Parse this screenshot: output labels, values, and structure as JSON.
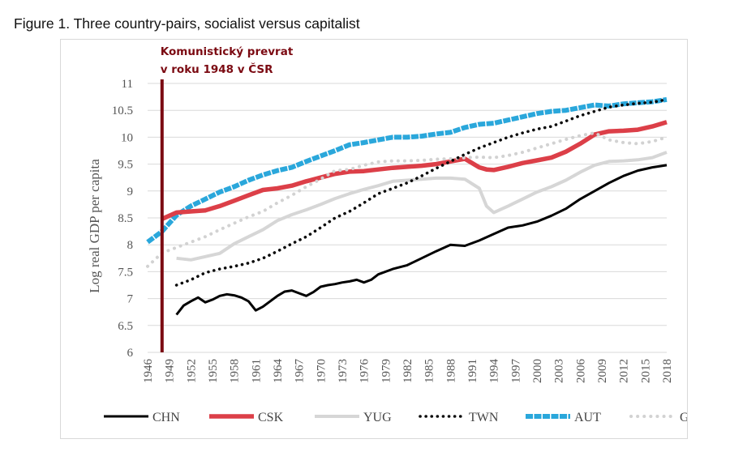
{
  "figure_title": "Figure 1. Three country-pairs, socialist versus capitalist",
  "colors": {
    "CHN": "#000000",
    "CSK": "#dc3f48",
    "YUG": "#d6d6d6",
    "TWN": "#0a0a0a",
    "AUT": "#2aa7db",
    "GRC": "#d2d2d2",
    "annotation": "#7b0a12"
  },
  "chart_data": {
    "type": "line",
    "ylabel": "Log real GDP per capita",
    "xlabel": "",
    "ylim": [
      6,
      11
    ],
    "xlim": [
      1946,
      2018
    ],
    "y_ticks": [
      "11",
      "10.5",
      "10",
      "9.5",
      "9",
      "8.5",
      "8",
      "7.5",
      "7",
      "6.5",
      "6"
    ],
    "x_ticks": [
      "1946",
      "1949",
      "1952",
      "1955",
      "1958",
      "1961",
      "1964",
      "1967",
      "1970",
      "1973",
      "1976",
      "1979",
      "1982",
      "1985",
      "1988",
      "1991",
      "1994",
      "1997",
      "2000",
      "2003",
      "2006",
      "2009",
      "2012",
      "2015",
      "2018"
    ],
    "grid": "horizontal",
    "legend_position": "bottom",
    "annotation": {
      "lines": [
        "Komunistický prevrat",
        "v roku 1948 v ČSR"
      ],
      "x": 1948
    },
    "series": [
      {
        "name": "AUT",
        "style": "dashed-thick",
        "x": [
          1946,
          1948,
          1950,
          1952,
          1954,
          1956,
          1958,
          1960,
          1962,
          1964,
          1966,
          1968,
          1970,
          1972,
          1974,
          1976,
          1978,
          1980,
          1982,
          1984,
          1986,
          1988,
          1990,
          1992,
          1994,
          1996,
          1998,
          2000,
          2002,
          2004,
          2006,
          2008,
          2010,
          2012,
          2014,
          2016,
          2018
        ],
        "y": [
          8.05,
          8.25,
          8.55,
          8.72,
          8.85,
          8.98,
          9.08,
          9.2,
          9.3,
          9.38,
          9.44,
          9.55,
          9.65,
          9.75,
          9.86,
          9.9,
          9.95,
          10.0,
          10.0,
          10.02,
          10.06,
          10.09,
          10.18,
          10.24,
          10.26,
          10.32,
          10.38,
          10.44,
          10.48,
          10.5,
          10.55,
          10.6,
          10.58,
          10.62,
          10.64,
          10.66,
          10.7
        ]
      },
      {
        "name": "CSK",
        "style": "solid-thick",
        "x": [
          1948,
          1950,
          1952,
          1954,
          1956,
          1958,
          1960,
          1962,
          1964,
          1966,
          1968,
          1970,
          1972,
          1974,
          1976,
          1978,
          1980,
          1982,
          1984,
          1986,
          1988,
          1990,
          1992,
          1993,
          1994,
          1996,
          1998,
          2000,
          2002,
          2004,
          2006,
          2008,
          2010,
          2012,
          2014,
          2016,
          2018
        ],
        "y": [
          8.48,
          8.6,
          8.62,
          8.64,
          8.72,
          8.82,
          8.92,
          9.02,
          9.05,
          9.1,
          9.18,
          9.25,
          9.32,
          9.36,
          9.37,
          9.4,
          9.43,
          9.45,
          9.47,
          9.5,
          9.55,
          9.6,
          9.44,
          9.4,
          9.39,
          9.45,
          9.52,
          9.57,
          9.62,
          9.73,
          9.88,
          10.05,
          10.11,
          10.12,
          10.14,
          10.2,
          10.28
        ]
      },
      {
        "name": "YUG",
        "style": "solid",
        "x": [
          1950,
          1952,
          1954,
          1956,
          1958,
          1960,
          1962,
          1964,
          1966,
          1968,
          1970,
          1972,
          1974,
          1976,
          1978,
          1980,
          1982,
          1984,
          1986,
          1988,
          1990,
          1992,
          1993,
          1994,
          1996,
          1998,
          2000,
          2002,
          2004,
          2006,
          2008,
          2010,
          2012,
          2014,
          2016,
          2018
        ],
        "y": [
          7.75,
          7.72,
          7.78,
          7.84,
          8.02,
          8.15,
          8.28,
          8.45,
          8.56,
          8.65,
          8.75,
          8.86,
          8.95,
          9.03,
          9.1,
          9.18,
          9.2,
          9.22,
          9.24,
          9.24,
          9.22,
          9.05,
          8.72,
          8.6,
          8.72,
          8.85,
          8.98,
          9.08,
          9.2,
          9.35,
          9.48,
          9.55,
          9.56,
          9.58,
          9.62,
          9.72
        ]
      },
      {
        "name": "GRC",
        "style": "dotted-light",
        "x": [
          1946,
          1948,
          1950,
          1952,
          1954,
          1956,
          1958,
          1960,
          1962,
          1964,
          1966,
          1968,
          1970,
          1972,
          1974,
          1976,
          1978,
          1980,
          1982,
          1984,
          1986,
          1988,
          1990,
          1992,
          1994,
          1996,
          1998,
          2000,
          2002,
          2004,
          2006,
          2008,
          2010,
          2012,
          2014,
          2016,
          2018
        ],
        "y": [
          7.6,
          7.85,
          7.95,
          8.05,
          8.15,
          8.28,
          8.4,
          8.52,
          8.62,
          8.78,
          8.92,
          9.08,
          9.22,
          9.38,
          9.4,
          9.48,
          9.54,
          9.56,
          9.56,
          9.57,
          9.59,
          9.6,
          9.62,
          9.63,
          9.62,
          9.66,
          9.72,
          9.8,
          9.88,
          9.96,
          10.03,
          10.08,
          9.95,
          9.9,
          9.88,
          9.92,
          10.0
        ]
      },
      {
        "name": "TWN",
        "style": "dotted",
        "x": [
          1950,
          1952,
          1954,
          1956,
          1958,
          1960,
          1962,
          1964,
          1966,
          1968,
          1970,
          1972,
          1974,
          1976,
          1978,
          1980,
          1982,
          1984,
          1986,
          1988,
          1990,
          1992,
          1994,
          1996,
          1998,
          2000,
          2002,
          2004,
          2006,
          2008,
          2010,
          2012,
          2014,
          2016,
          2018
        ],
        "y": [
          7.25,
          7.35,
          7.48,
          7.55,
          7.6,
          7.66,
          7.75,
          7.88,
          8.02,
          8.15,
          8.32,
          8.5,
          8.62,
          8.78,
          8.95,
          9.05,
          9.15,
          9.28,
          9.42,
          9.55,
          9.68,
          9.8,
          9.9,
          10.0,
          10.08,
          10.15,
          10.2,
          10.3,
          10.4,
          10.48,
          10.56,
          10.6,
          10.63,
          10.65,
          10.7
        ]
      },
      {
        "name": "CHN",
        "style": "solid-black",
        "x": [
          1950,
          1951,
          1952,
          1953,
          1954,
          1955,
          1956,
          1957,
          1958,
          1959,
          1960,
          1961,
          1962,
          1963,
          1964,
          1965,
          1966,
          1967,
          1968,
          1969,
          1970,
          1971,
          1972,
          1973,
          1974,
          1975,
          1976,
          1977,
          1978,
          1980,
          1982,
          1984,
          1986,
          1988,
          1990,
          1992,
          1994,
          1996,
          1998,
          2000,
          2002,
          2004,
          2006,
          2008,
          2010,
          2012,
          2014,
          2016,
          2018
        ],
        "y": [
          6.7,
          6.87,
          6.95,
          7.02,
          6.93,
          6.98,
          7.05,
          7.08,
          7.06,
          7.02,
          6.95,
          6.78,
          6.85,
          6.95,
          7.05,
          7.13,
          7.15,
          7.1,
          7.05,
          7.12,
          7.22,
          7.25,
          7.27,
          7.3,
          7.32,
          7.35,
          7.3,
          7.35,
          7.45,
          7.55,
          7.62,
          7.75,
          7.88,
          8.0,
          7.98,
          8.08,
          8.2,
          8.32,
          8.36,
          8.43,
          8.54,
          8.67,
          8.85,
          9.0,
          9.15,
          9.28,
          9.38,
          9.44,
          9.48
        ]
      }
    ],
    "legend": [
      "CHN",
      "CSK",
      "YUG",
      "TWN",
      "AUT",
      "GRC"
    ]
  }
}
